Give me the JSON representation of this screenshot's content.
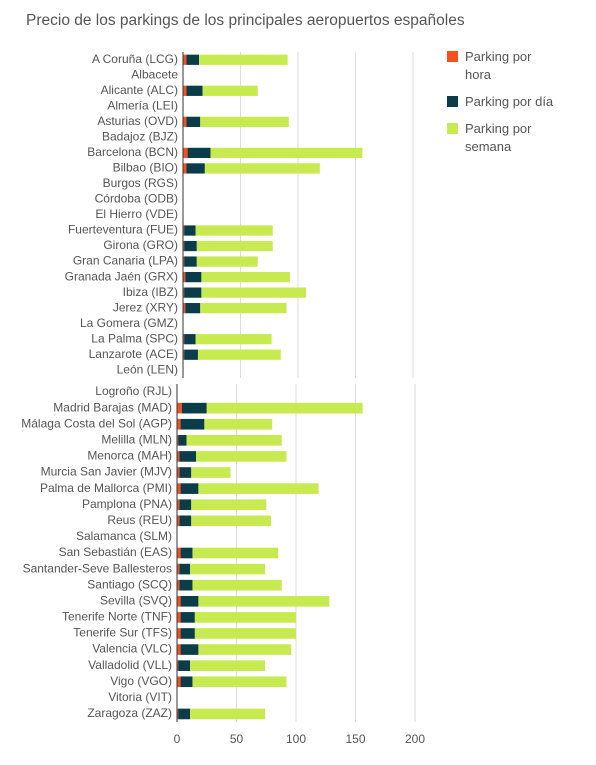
{
  "chart_data": [
    {
      "type": "stacked-barh",
      "title": "Precio de los parkings de los principales aeropuertos españoles",
      "categories": [
        "A Coruña (LCG)",
        "Albacete",
        "Alicante (ALC)",
        "Almería (LEI)",
        "Asturias (OVD)",
        "Badajoz (BJZ)",
        "Barcelona (BCN)",
        "Bilbao (BIO)",
        "Burgos (RGS)",
        "Córdoba (ODB)",
        "El Hierro (VDE)",
        "Fuerteventura (FUE)",
        "Girona (GRO)",
        "Gran Canaria (LPA)",
        "Granada Jaén (GRX)",
        "Ibiza (IBZ)",
        "Jerez (XRY)",
        "La Gomera (GMZ)",
        "La Palma (SPC)",
        "Lanzarote (ACE)",
        "León (LEN)"
      ],
      "series": [
        {
          "name": "Parking por hora",
          "color": "#f4511e",
          "values": [
            3,
            null,
            3,
            null,
            3,
            null,
            4,
            3,
            null,
            null,
            null,
            1,
            1,
            1,
            2,
            1,
            2,
            null,
            1,
            1,
            null
          ]
        },
        {
          "name": "Parking por día",
          "color": "#0b3c49",
          "values": [
            11,
            null,
            14,
            null,
            12,
            null,
            20,
            16,
            null,
            null,
            null,
            10,
            11,
            11,
            14,
            15,
            13,
            null,
            10,
            12,
            null
          ]
        },
        {
          "name": "Parking por semana",
          "color": "#c6ea4f",
          "values": [
            77,
            null,
            48,
            null,
            77,
            null,
            132,
            100,
            null,
            null,
            null,
            67,
            66,
            53,
            77,
            91,
            75,
            null,
            66,
            72,
            null
          ]
        }
      ],
      "xlim": [
        0,
        200
      ],
      "xticks": [
        0,
        50,
        100,
        150,
        200
      ],
      "tick_labels": false,
      "grid": true
    },
    {
      "type": "stacked-barh",
      "categories": [
        "Logroño (RJL)",
        "Madrid Barajas (MAD)",
        "Málaga Costa del Sol (AGP)",
        "Melilla (MLN)",
        "Menorca (MAH)",
        "Murcia San Javier (MJV)",
        "Palma de Mallorca (PMI)",
        "Pamplona (PNA)",
        "Reus (REU)",
        "Salamanca (SLM)",
        "San Sebastián (EAS)",
        "Santander-Seve Ballesteros",
        "Santiago (SCQ)",
        "Sevilla (SVQ)",
        "Tenerife Norte (TNF)",
        "Tenerife Sur (TFS)",
        "Valencia (VLC)",
        "Valladolid (VLL)",
        "Vigo (VGO)",
        "Vitoria (VIT)",
        "Zaragoza (ZAZ)"
      ],
      "series": [
        {
          "color": "#f4511e",
          "values": [
            null,
            4,
            3,
            1,
            2,
            2,
            3,
            2,
            2,
            null,
            3,
            2,
            2,
            3,
            3,
            3,
            3,
            1,
            3,
            null,
            1
          ]
        },
        {
          "color": "#0b3c49",
          "values": [
            null,
            21,
            20,
            7,
            14,
            10,
            15,
            10,
            10,
            null,
            10,
            9,
            11,
            15,
            12,
            12,
            15,
            10,
            10,
            null,
            10
          ]
        },
        {
          "color": "#c6ea4f",
          "values": [
            null,
            131,
            57,
            80,
            76,
            33,
            101,
            63,
            67,
            null,
            72,
            63,
            75,
            110,
            85,
            85,
            78,
            63,
            79,
            null,
            63
          ]
        }
      ],
      "xlim": [
        0,
        200
      ],
      "xticks": [
        0,
        50,
        100,
        150,
        200
      ],
      "tick_labels": true,
      "grid": true
    }
  ]
}
